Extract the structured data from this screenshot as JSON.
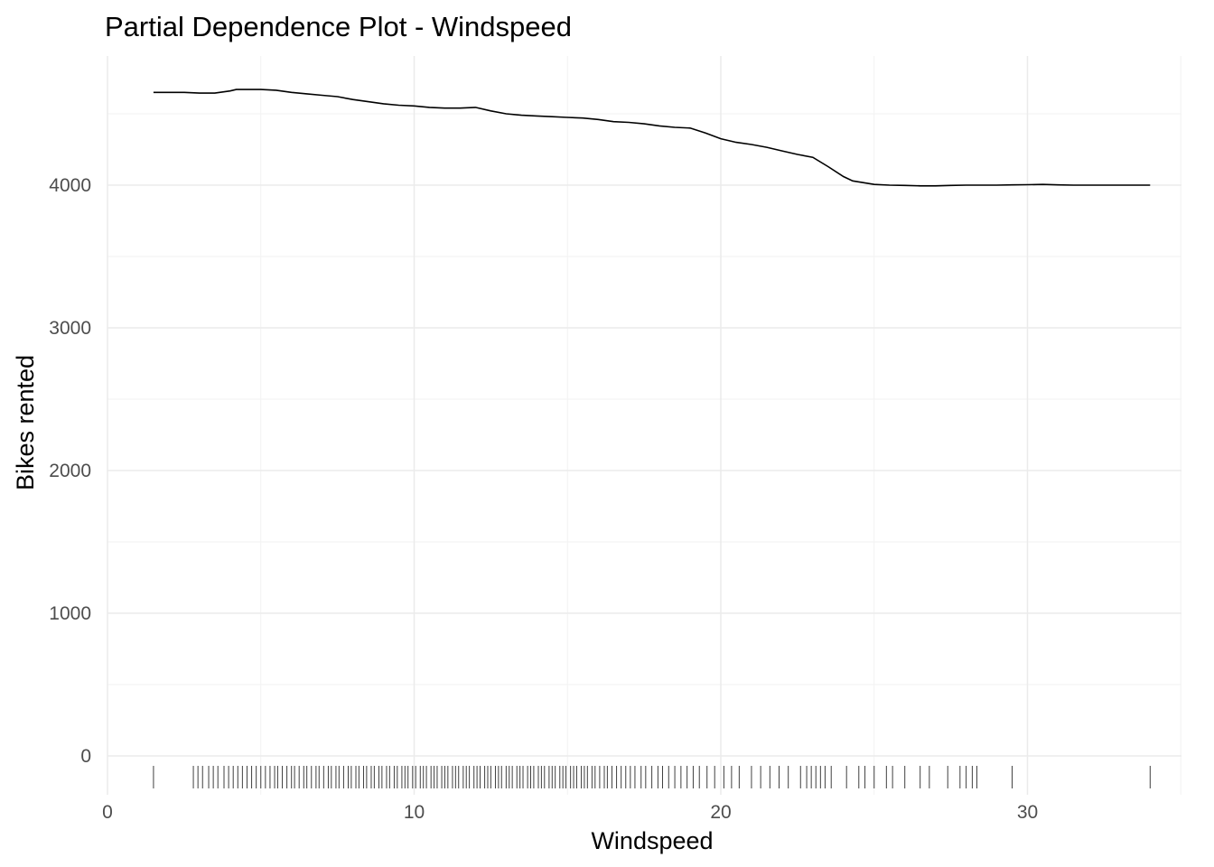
{
  "chart_data": {
    "type": "line",
    "title": "Partial Dependence Plot - Windspeed",
    "xlabel": "Windspeed",
    "ylabel": "Bikes rented",
    "xlim": [
      0,
      35.5
    ],
    "ylim": [
      -200,
      4900
    ],
    "x_ticks": [
      0,
      10,
      20,
      30
    ],
    "x_tick_labels": [
      "0",
      "10",
      "20",
      "30"
    ],
    "y_ticks": [
      0,
      1000,
      2000,
      3000,
      4000
    ],
    "y_tick_labels": [
      "0",
      "1000",
      "2000",
      "3000",
      "4000"
    ],
    "grid": true,
    "legend": "none",
    "series": [
      {
        "x": [
          1.5,
          2.0,
          2.5,
          3.0,
          3.5,
          4.0,
          4.2,
          4.5,
          5.0,
          5.5,
          6.0,
          6.5,
          7.0,
          7.5,
          8.0,
          8.5,
          9.0,
          9.5,
          10.0,
          10.5,
          11.0,
          11.5,
          12.0,
          12.5,
          13.0,
          13.5,
          14.0,
          14.5,
          15.0,
          15.5,
          16.0,
          16.5,
          17.0,
          17.5,
          18.0,
          18.5,
          19.0,
          19.5,
          20.0,
          20.5,
          21.0,
          21.5,
          22.0,
          22.5,
          23.0,
          23.5,
          24.0,
          24.3,
          25.0,
          25.5,
          26.0,
          26.5,
          27.0,
          27.5,
          28.0,
          28.5,
          29.0,
          29.5,
          30.0,
          30.5,
          31.0,
          31.5,
          32.0,
          32.5,
          33.0,
          33.5,
          34.0
        ],
        "y": [
          4650,
          4650,
          4650,
          4645,
          4645,
          4660,
          4670,
          4670,
          4670,
          4665,
          4650,
          4640,
          4630,
          4620,
          4600,
          4585,
          4570,
          4560,
          4555,
          4545,
          4540,
          4540,
          4545,
          4520,
          4500,
          4490,
          4485,
          4480,
          4475,
          4470,
          4460,
          4445,
          4440,
          4430,
          4415,
          4405,
          4400,
          4365,
          4325,
          4300,
          4285,
          4265,
          4240,
          4215,
          4195,
          4130,
          4060,
          4030,
          4005,
          4000,
          3998,
          3995,
          3995,
          3998,
          4000,
          4000,
          4000,
          4002,
          4003,
          4005,
          4002,
          4000,
          4000,
          4000,
          4000,
          4000,
          4000
        ]
      }
    ],
    "rug_x": [
      1.5,
      2.8,
      2.95,
      3.1,
      3.3,
      3.45,
      3.6,
      3.8,
      3.95,
      4.1,
      4.25,
      4.4,
      4.55,
      4.7,
      4.85,
      5.0,
      5.15,
      5.3,
      5.45,
      5.55,
      5.7,
      5.85,
      6.0,
      6.1,
      6.25,
      6.4,
      6.5,
      6.65,
      6.8,
      6.9,
      7.05,
      7.2,
      7.3,
      7.45,
      7.55,
      7.7,
      7.85,
      7.95,
      8.1,
      8.2,
      8.35,
      8.45,
      8.6,
      8.7,
      8.85,
      8.95,
      9.1,
      9.2,
      9.35,
      9.45,
      9.6,
      9.7,
      9.8,
      9.95,
      10.05,
      10.2,
      10.3,
      10.4,
      10.55,
      10.65,
      10.75,
      10.9,
      11.0,
      11.1,
      11.25,
      11.35,
      11.45,
      11.6,
      11.7,
      11.8,
      11.95,
      12.05,
      12.15,
      12.3,
      12.4,
      12.5,
      12.65,
      12.75,
      12.85,
      13.0,
      13.1,
      13.2,
      13.35,
      13.45,
      13.55,
      13.7,
      13.8,
      13.9,
      14.05,
      14.15,
      14.25,
      14.4,
      14.5,
      14.6,
      14.75,
      14.85,
      14.95,
      15.1,
      15.2,
      15.3,
      15.45,
      15.55,
      15.65,
      15.8,
      15.9,
      16.05,
      16.2,
      16.3,
      16.45,
      16.6,
      16.75,
      16.9,
      17.05,
      17.2,
      17.4,
      17.55,
      17.75,
      17.95,
      18.1,
      18.3,
      18.5,
      18.7,
      18.9,
      19.1,
      19.3,
      19.55,
      19.8,
      20.1,
      20.35,
      20.6,
      21.0,
      21.3,
      21.6,
      21.9,
      22.2,
      22.6,
      22.8,
      22.95,
      23.1,
      23.25,
      23.4,
      23.6,
      24.1,
      24.5,
      24.7,
      25.0,
      25.4,
      25.6,
      26.0,
      26.5,
      26.8,
      27.4,
      27.8,
      28.0,
      28.2,
      28.35,
      29.5,
      34.0
    ]
  }
}
